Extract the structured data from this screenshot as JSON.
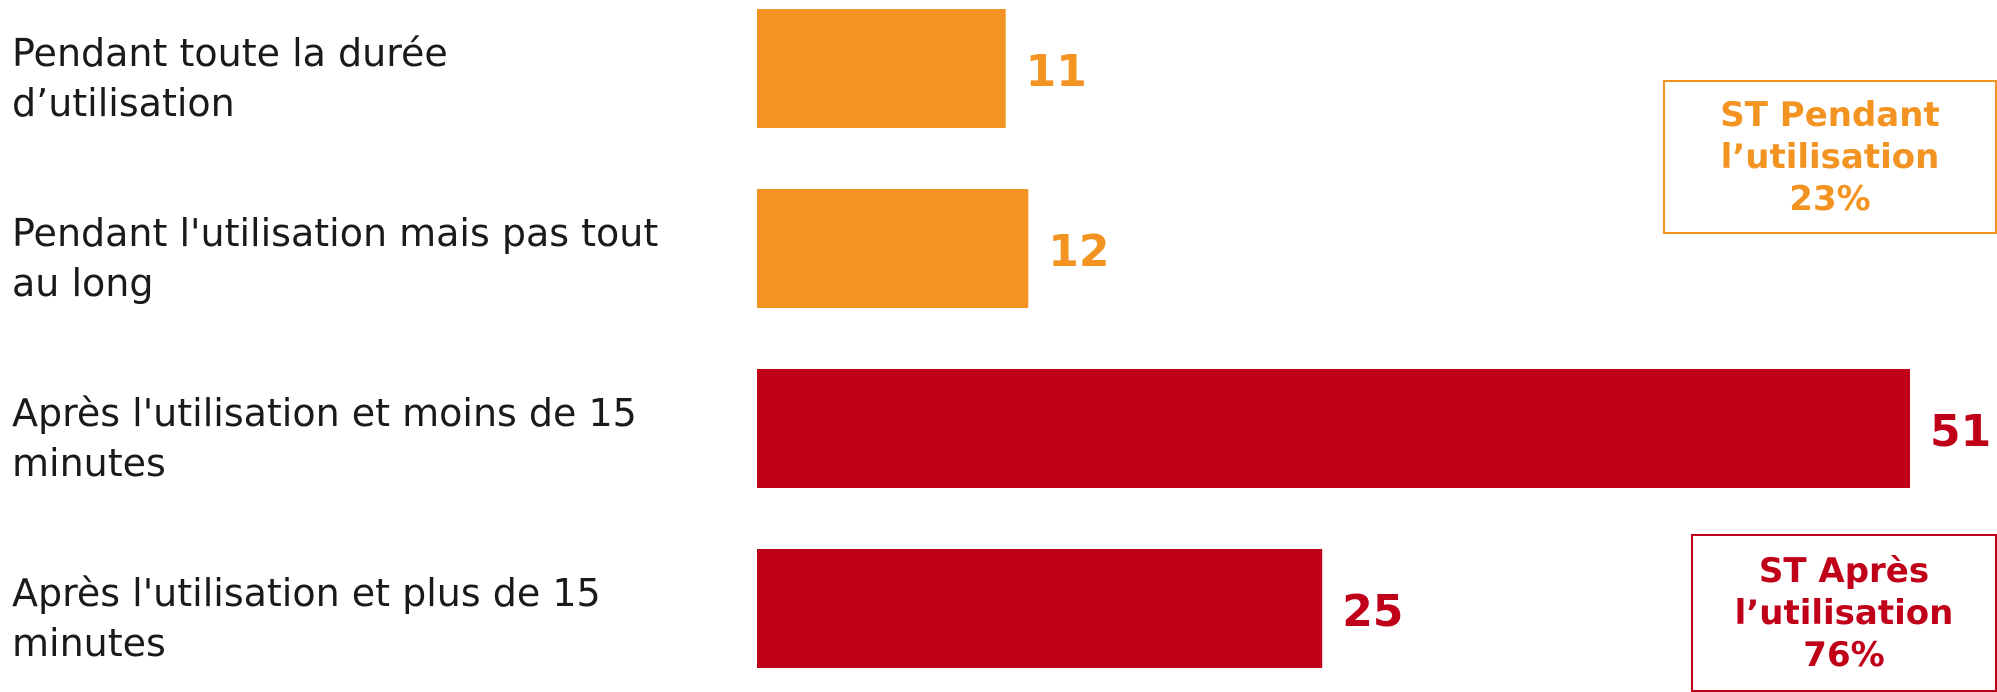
{
  "colors": {
    "orange": "#F39321",
    "red": "#C00018"
  },
  "chart_data": {
    "type": "bar",
    "orientation": "horizontal",
    "categories": [
      [
        "Pendant toute la durée",
        "d’utilisation"
      ],
      [
        "Pendant l'utilisation mais pas tout",
        "au long"
      ],
      [
        "Après l'utilisation et moins de 15",
        "minutes"
      ],
      [
        "Après l'utilisation et plus de 15",
        "minutes"
      ]
    ],
    "values": [
      11,
      12,
      51,
      25
    ],
    "bar_colors": [
      "orange",
      "orange",
      "red",
      "red"
    ],
    "xlim": [
      0,
      51
    ],
    "grid": false
  },
  "subtotals": [
    {
      "lines": [
        "ST Pendant",
        "l’utilisation",
        "23%"
      ],
      "color": "orange"
    },
    {
      "lines": [
        "ST Après",
        "l’utilisation",
        "76%"
      ],
      "color": "red"
    }
  ]
}
